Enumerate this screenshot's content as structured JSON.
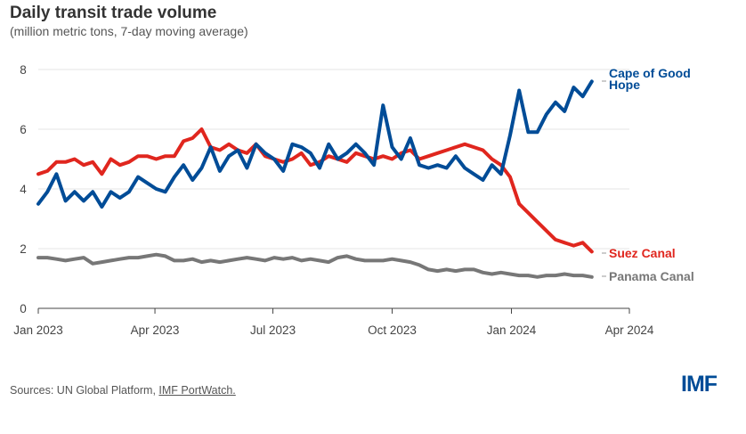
{
  "header": {
    "title": "Daily transit trade volume",
    "subtitle": "(million metric tons, 7-day moving average)"
  },
  "footer": {
    "source_prefix": "Sources: UN Global Platform, ",
    "source_link": "IMF PortWatch.",
    "logo": "IMF"
  },
  "chart_data": {
    "type": "line",
    "title": "Daily transit trade volume",
    "subtitle": "(million metric tons, 7-day moving average)",
    "ylim": [
      0,
      8
    ],
    "yticks": [
      "0",
      "2",
      "4",
      "6",
      "8"
    ],
    "xlim": [
      "2023-01-01",
      "2024-04-01"
    ],
    "xticks": [
      {
        "date": "2023-01-01",
        "label": "Jan 2023"
      },
      {
        "date": "2023-04-01",
        "label": "Apr 2023"
      },
      {
        "date": "2023-07-01",
        "label": "Jul 2023"
      },
      {
        "date": "2023-10-01",
        "label": "Oct 2023"
      },
      {
        "date": "2024-01-01",
        "label": "Jan 2024"
      },
      {
        "date": "2024-04-01",
        "label": "Apr 2024"
      }
    ],
    "grid": true,
    "legend": "direct labels at right",
    "x": [
      "2023-01-01",
      "2023-01-08",
      "2023-01-15",
      "2023-01-22",
      "2023-01-29",
      "2023-02-05",
      "2023-02-12",
      "2023-02-19",
      "2023-02-26",
      "2023-03-05",
      "2023-03-12",
      "2023-03-19",
      "2023-03-26",
      "2023-04-02",
      "2023-04-09",
      "2023-04-16",
      "2023-04-23",
      "2023-04-30",
      "2023-05-07",
      "2023-05-14",
      "2023-05-21",
      "2023-05-28",
      "2023-06-04",
      "2023-06-11",
      "2023-06-18",
      "2023-06-25",
      "2023-07-02",
      "2023-07-09",
      "2023-07-16",
      "2023-07-23",
      "2023-07-30",
      "2023-08-06",
      "2023-08-13",
      "2023-08-20",
      "2023-08-27",
      "2023-09-03",
      "2023-09-10",
      "2023-09-17",
      "2023-09-24",
      "2023-10-01",
      "2023-10-08",
      "2023-10-15",
      "2023-10-22",
      "2023-10-29",
      "2023-11-05",
      "2023-11-12",
      "2023-11-19",
      "2023-11-26",
      "2023-12-03",
      "2023-12-10",
      "2023-12-17",
      "2023-12-24",
      "2023-12-31",
      "2024-01-07",
      "2024-01-14",
      "2024-01-21",
      "2024-01-28",
      "2024-02-04",
      "2024-02-11",
      "2024-02-18",
      "2024-02-25",
      "2024-03-03"
    ],
    "series": [
      {
        "name": "Cape of Good Hope",
        "color": "#004C97",
        "values": [
          3.5,
          3.9,
          4.5,
          3.6,
          3.9,
          3.6,
          3.9,
          3.4,
          3.9,
          3.7,
          3.9,
          4.4,
          4.2,
          4.0,
          3.9,
          4.4,
          4.8,
          4.3,
          4.7,
          5.4,
          4.6,
          5.1,
          5.3,
          4.7,
          5.5,
          5.2,
          5.0,
          4.6,
          5.5,
          5.4,
          5.2,
          4.7,
          5.5,
          5.0,
          5.2,
          5.5,
          5.2,
          4.8,
          6.8,
          5.4,
          5.0,
          5.7,
          4.8,
          4.7,
          4.8,
          4.7,
          5.1,
          4.7,
          4.5,
          4.3,
          4.8,
          4.5,
          5.8,
          7.3,
          5.9,
          5.9,
          6.5,
          6.9,
          6.6,
          7.4,
          7.1,
          7.6
        ]
      },
      {
        "name": "Suez Canal",
        "color": "#E0261E",
        "values": [
          4.5,
          4.6,
          4.9,
          4.9,
          5.0,
          4.8,
          4.9,
          4.5,
          5.0,
          4.8,
          4.9,
          5.1,
          5.1,
          5.0,
          5.1,
          5.1,
          5.6,
          5.7,
          6.0,
          5.4,
          5.3,
          5.5,
          5.3,
          5.2,
          5.5,
          5.1,
          5.0,
          4.9,
          5.0,
          5.2,
          4.8,
          4.9,
          5.1,
          5.0,
          4.9,
          5.2,
          5.1,
          5.0,
          5.1,
          5.0,
          5.2,
          5.3,
          5.0,
          5.1,
          5.2,
          5.3,
          5.4,
          5.5,
          5.4,
          5.3,
          5.0,
          4.8,
          4.4,
          3.5,
          3.2,
          2.9,
          2.6,
          2.3,
          2.2,
          2.1,
          2.2,
          1.9
        ]
      },
      {
        "name": "Panama Canal",
        "color": "#777777",
        "values": [
          1.7,
          1.7,
          1.65,
          1.6,
          1.65,
          1.7,
          1.5,
          1.55,
          1.6,
          1.65,
          1.7,
          1.7,
          1.75,
          1.8,
          1.75,
          1.6,
          1.6,
          1.65,
          1.55,
          1.6,
          1.55,
          1.6,
          1.65,
          1.7,
          1.65,
          1.6,
          1.7,
          1.65,
          1.7,
          1.6,
          1.65,
          1.6,
          1.55,
          1.7,
          1.75,
          1.65,
          1.6,
          1.6,
          1.6,
          1.65,
          1.6,
          1.55,
          1.45,
          1.3,
          1.25,
          1.3,
          1.25,
          1.3,
          1.3,
          1.2,
          1.15,
          1.2,
          1.15,
          1.1,
          1.1,
          1.05,
          1.1,
          1.1,
          1.15,
          1.1,
          1.1,
          1.05
        ]
      }
    ],
    "labels": {
      "cape_line1": "Cape of Good",
      "cape_line2": "Hope",
      "suez": "Suez Canal",
      "panama": "Panama Canal"
    }
  }
}
